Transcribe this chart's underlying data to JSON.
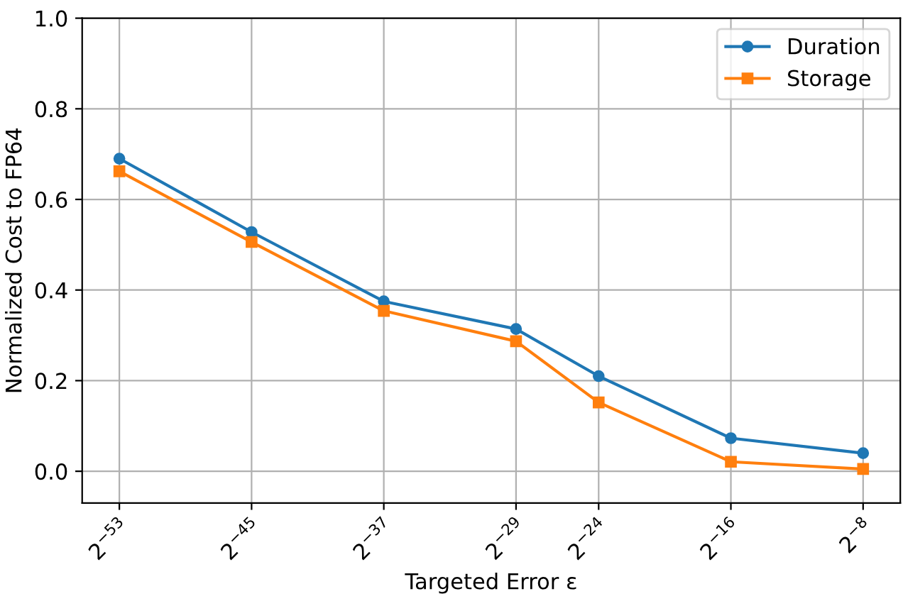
{
  "chart_data": {
    "type": "line",
    "xlabel": "Targeted Error ε",
    "ylabel": "Normalized Cost to FP64",
    "x": [
      1.1102230246251565e-16,
      2.842170943040401e-14,
      7.275957614183426e-12,
      1.862645149230957e-09,
      5.960464477539063e-08,
      1.52587890625e-05,
      0.00390625
    ],
    "log": "x",
    "series": [
      {
        "name": "Duration",
        "color": "#1f77b4",
        "marker": "circle",
        "values": [
          0.69,
          0.528,
          0.375,
          0.314,
          0.21,
          0.073,
          0.04
        ]
      },
      {
        "name": "Storage",
        "color": "#ff7f0e",
        "marker": "square",
        "values": [
          0.662,
          0.506,
          0.354,
          0.287,
          0.152,
          0.021,
          0.005
        ]
      }
    ],
    "xlim": [
      2.334e-17,
      0.01858
    ],
    "ylim": [
      -0.07,
      1.0
    ],
    "xticks": [
      {
        "value": 1.1102230246251565e-16,
        "label": "2$^{−53}$"
      },
      {
        "value": 2.842170943040401e-14,
        "label": "2$^{−45}$"
      },
      {
        "value": 7.275957614183426e-12,
        "label": "2$^{−37}$"
      },
      {
        "value": 1.862645149230957e-09,
        "label": "2$^{−29}$"
      },
      {
        "value": 5.960464477539063e-08,
        "label": "2$^{−24}$"
      },
      {
        "value": 1.52587890625e-05,
        "label": "2$^{−16}$"
      },
      {
        "value": 0.00390625,
        "label": "2$^{−8}$"
      }
    ],
    "yticks": [
      {
        "value": 0,
        "label": "0.0"
      },
      {
        "value": 0.2,
        "label": "0.2"
      },
      {
        "value": 0.4,
        "label": "0.4"
      },
      {
        "value": 0.6,
        "label": "0.6"
      },
      {
        "value": 0.8,
        "label": "0.8"
      },
      {
        "value": 1.0,
        "label": "1.0"
      }
    ],
    "grid": true,
    "legend": "top right",
    "line_style": "solid"
  }
}
